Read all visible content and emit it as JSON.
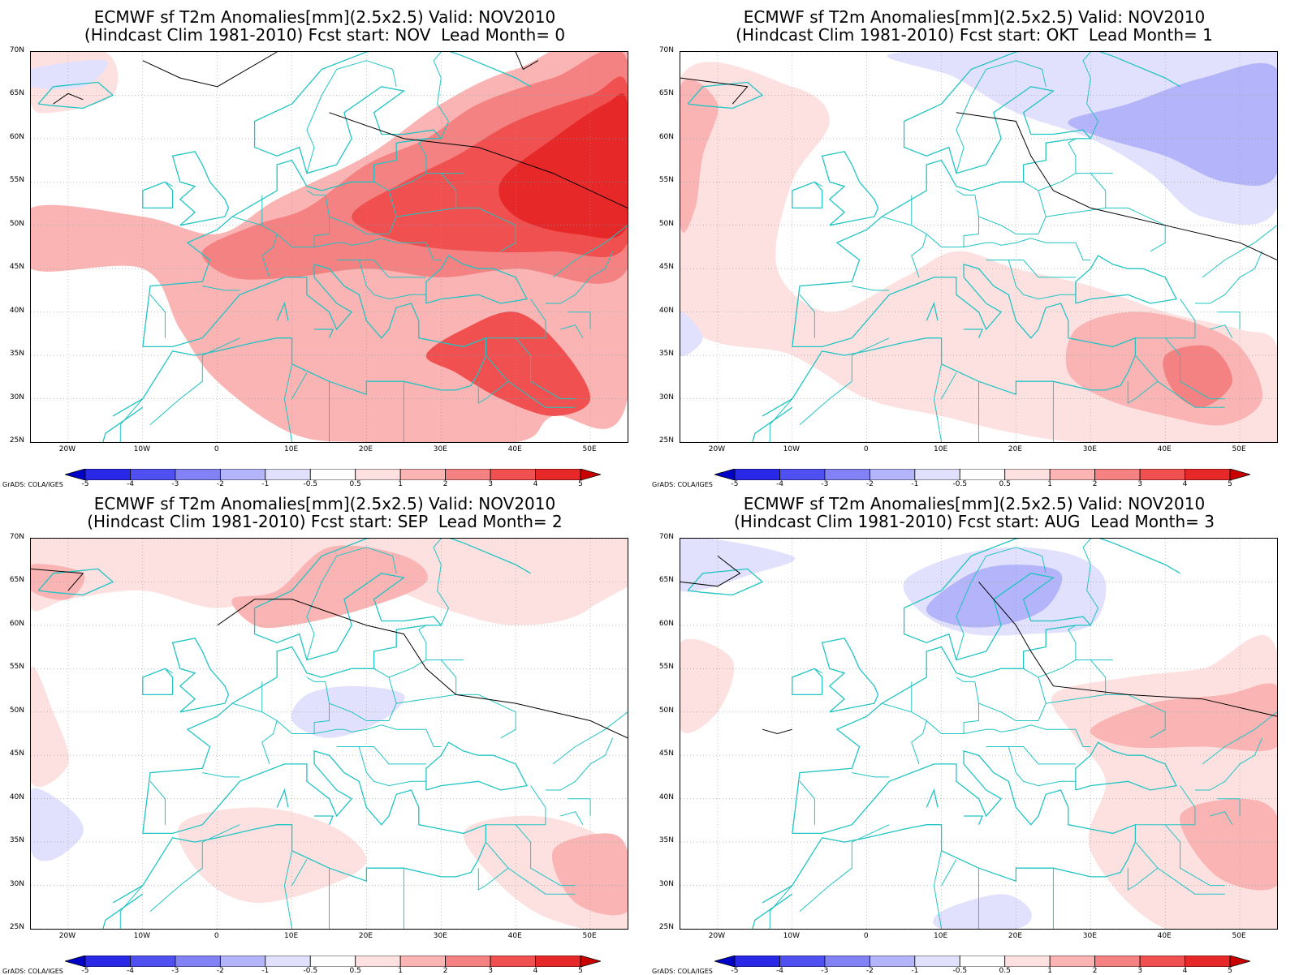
{
  "panels": [
    {
      "title1": "ECMWF sf T2m Anomalies[mm](2.5x2.5) Valid: NOV2010",
      "title2": "(Hindcast Clim 1981-2010) Fcst start: NOV  Lead Month= 0"
    },
    {
      "title1": "ECMWF sf T2m Anomalies[mm](2.5x2.5) Valid: NOV2010",
      "title2": "(Hindcast Clim 1981-2010) Fcst start: OKT  Lead Month= 1"
    },
    {
      "title1": "ECMWF sf T2m Anomalies[mm](2.5x2.5) Valid: NOV2010",
      "title2": "(Hindcast Clim 1981-2010) Fcst start: SEP  Lead Month= 2"
    },
    {
      "title1": "ECMWF sf T2m Anomalies[mm](2.5x2.5) Valid: NOV2010",
      "title2": "(Hindcast Clim 1981-2010) Fcst start: AUG  Lead Month= 3"
    }
  ],
  "lat_labels": [
    "70N",
    "65N",
    "60N",
    "55N",
    "50N",
    "45N",
    "40N",
    "35N",
    "30N",
    "25N"
  ],
  "lon_labels": [
    "20W",
    "10W",
    "0",
    "10E",
    "20E",
    "30E",
    "40E",
    "50E"
  ],
  "colorbar_labels": [
    "-5",
    "-4",
    "-3",
    "-2",
    "-1",
    "-0.5",
    "0.5",
    "1",
    "2",
    "3",
    "4",
    "5"
  ],
  "colorbar_colors": [
    "#0000c8",
    "#2828e6",
    "#5050f0",
    "#8282f5",
    "#b4b4fa",
    "#e1e1fd",
    "#ffffff",
    "#fde1e1",
    "#fab4b4",
    "#f58282",
    "#f05050",
    "#e62828",
    "#c80000"
  ],
  "grads_credit": "GrADS: COLA/IGES",
  "coastline_color": "#22c3c3"
}
